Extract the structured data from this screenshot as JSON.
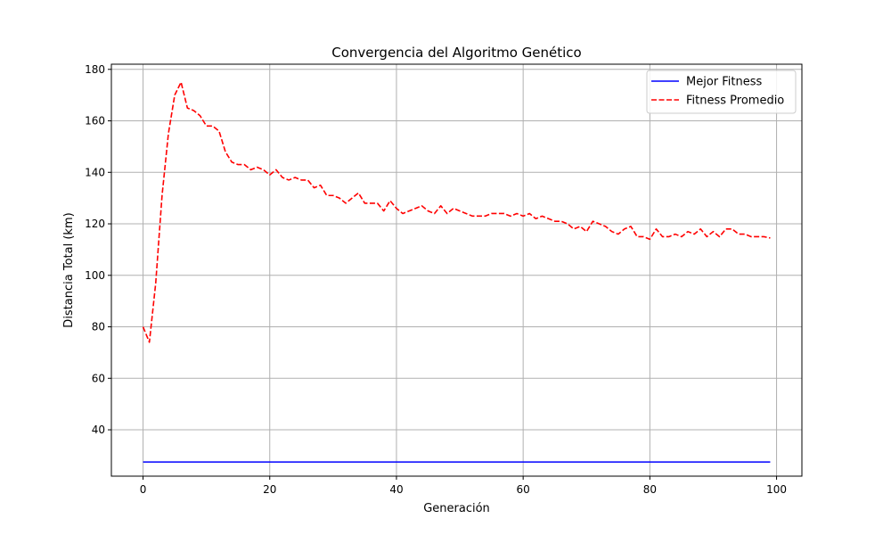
{
  "chart_data": {
    "type": "line",
    "title": "Convergencia del Algoritmo Genético",
    "xlabel": "Generación",
    "ylabel": "Distancia Total (km)",
    "xlim": [
      -5,
      104
    ],
    "ylim": [
      22,
      182
    ],
    "xticks": [
      0,
      20,
      40,
      60,
      80,
      100
    ],
    "yticks": [
      40,
      60,
      80,
      100,
      120,
      140,
      160,
      180
    ],
    "grid": true,
    "legend_position": "top-right",
    "series": [
      {
        "name": "Mejor Fitness",
        "color": "#0000ff",
        "style": "solid",
        "x": [
          0,
          99
        ],
        "values": [
          27.5,
          27.5
        ]
      },
      {
        "name": "Fitness Promedio",
        "color": "#ff0000",
        "style": "dashed",
        "x": [
          0,
          1,
          2,
          3,
          4,
          5,
          6,
          7,
          8,
          9,
          10,
          11,
          12,
          13,
          14,
          15,
          16,
          17,
          18,
          19,
          20,
          21,
          22,
          23,
          24,
          25,
          26,
          27,
          28,
          29,
          30,
          31,
          32,
          33,
          34,
          35,
          36,
          37,
          38,
          39,
          40,
          41,
          42,
          43,
          44,
          45,
          46,
          47,
          48,
          49,
          50,
          51,
          52,
          53,
          54,
          55,
          56,
          57,
          58,
          59,
          60,
          61,
          62,
          63,
          64,
          65,
          66,
          67,
          68,
          69,
          70,
          71,
          72,
          73,
          74,
          75,
          76,
          77,
          78,
          79,
          80,
          81,
          82,
          83,
          84,
          85,
          86,
          87,
          88,
          89,
          90,
          91,
          92,
          93,
          94,
          95,
          96,
          97,
          98,
          99
        ],
        "values": [
          80,
          74,
          97,
          131,
          155,
          170,
          175,
          165,
          164,
          162,
          158,
          158,
          156,
          148,
          144,
          143,
          143,
          141,
          142,
          141,
          139,
          141,
          138,
          137,
          138,
          137,
          137,
          134,
          135,
          131,
          131,
          130,
          128,
          130,
          132,
          128,
          128,
          128,
          125,
          129,
          126,
          124,
          125,
          126,
          127,
          125,
          124,
          127,
          124,
          126,
          125,
          124,
          123,
          123,
          123,
          124,
          124,
          124,
          123,
          124,
          123,
          124,
          122,
          123,
          122,
          121,
          121,
          120,
          118,
          119,
          117,
          121,
          120,
          119,
          117,
          116,
          118,
          119,
          115,
          115,
          114,
          118,
          115,
          115,
          116,
          115,
          117,
          116,
          118,
          115,
          117,
          115,
          118,
          118,
          116,
          116,
          115,
          115,
          115,
          114.5
        ]
      }
    ]
  }
}
